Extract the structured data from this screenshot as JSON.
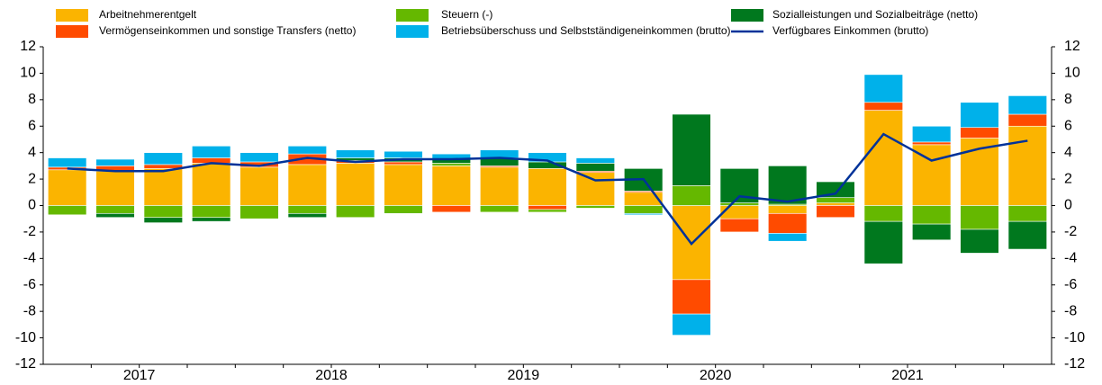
{
  "chart_data": {
    "type": "bar",
    "years": [
      "2017",
      "2018",
      "2019",
      "2020",
      "2021"
    ],
    "ylim": [
      -12,
      12
    ],
    "yticks": [
      -12,
      -10,
      -8,
      -6,
      -4,
      -2,
      0,
      2,
      4,
      6,
      8,
      10,
      12
    ],
    "y2lim": [
      -12,
      12
    ],
    "y2ticks": [
      -12,
      -10,
      -8,
      -6,
      -4,
      -2,
      0,
      2,
      4,
      6,
      8,
      10,
      12
    ],
    "stacked": true,
    "series": [
      {
        "name": "Arbeitnehmerentgelt",
        "color": "#fbb400",
        "values": [
          2.7,
          2.6,
          2.8,
          3.2,
          2.9,
          3.1,
          3.2,
          3.1,
          3.0,
          2.9,
          2.8,
          2.5,
          1.0,
          -5.6,
          -1.0,
          -0.6,
          0.2,
          7.2,
          4.6,
          5.1,
          6.0
        ]
      },
      {
        "name": "Vermögenseinkommen und sonstige Transfers (netto)",
        "color": "#ff4b00",
        "values": [
          0.2,
          0.4,
          0.3,
          0.4,
          0.4,
          0.8,
          0.2,
          0.2,
          -0.5,
          0.1,
          -0.3,
          0.1,
          0.1,
          -2.6,
          -1.0,
          -1.5,
          -0.9,
          0.6,
          0.2,
          0.8,
          0.9
        ]
      },
      {
        "name": "Steuern (-)",
        "color": "#65b800",
        "values": [
          -0.7,
          -0.6,
          -0.9,
          -0.9,
          -1.0,
          -0.6,
          -0.9,
          -0.6,
          0.2,
          -0.5,
          -0.2,
          -0.2,
          -0.6,
          1.5,
          0.2,
          0.1,
          0.4,
          -1.2,
          -1.4,
          -1.8,
          -1.2
        ]
      },
      {
        "name": "Sozialleistungen und Sozialbeiträge (netto)",
        "color": "#00781e",
        "values": [
          0,
          -0.3,
          -0.4,
          -0.3,
          0,
          -0.3,
          0.2,
          0.3,
          0.3,
          0.6,
          0.5,
          0.6,
          1.7,
          5.4,
          2.6,
          2.9,
          1.2,
          -3.2,
          -1.2,
          -1.8,
          -2.1
        ]
      },
      {
        "name": "Betriebsüberschuss und Selbstständigeneinkommen (brutto)",
        "color": "#00b1ea",
        "values": [
          0.7,
          0.5,
          0.9,
          0.9,
          0.7,
          0.6,
          0.6,
          0.5,
          0.4,
          0.6,
          0.7,
          0.4,
          -0.1,
          -1.6,
          0,
          -0.6,
          0,
          2.1,
          1.2,
          1.9,
          1.4
        ]
      },
      {
        "name": "Verfügbares Einkommen (brutto)",
        "color": "#003299",
        "type": "line",
        "values": [
          2.8,
          2.6,
          2.6,
          3.2,
          3.0,
          3.6,
          3.3,
          3.5,
          3.5,
          3.6,
          3.4,
          1.9,
          2.0,
          -2.9,
          0.7,
          0.3,
          0.9,
          5.4,
          3.4,
          4.3,
          4.9
        ]
      }
    ]
  }
}
